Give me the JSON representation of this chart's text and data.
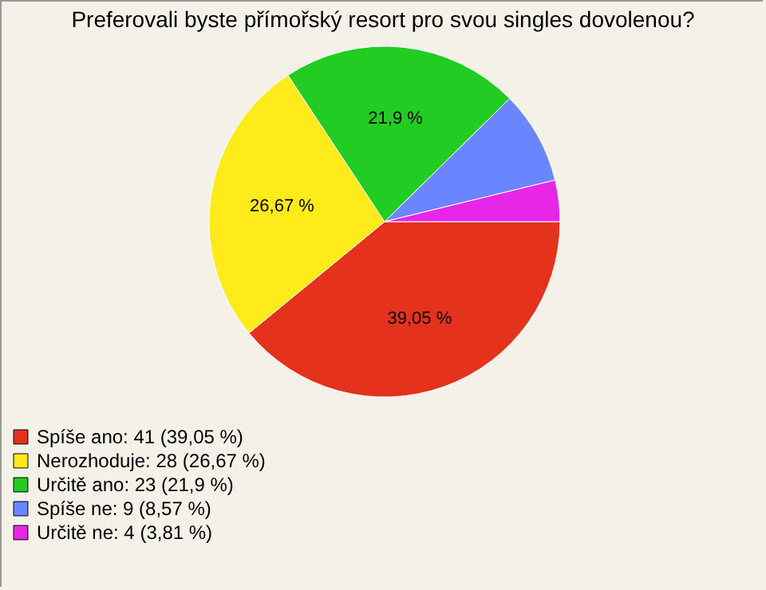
{
  "chart_data": {
    "type": "pie",
    "title": "Preferovali byste přímořský resort pro svou singles dovolenou?",
    "categories": [
      "Spíše ano: 41 (39,05 %)",
      "Nerozhoduje: 28 (26,67 %)",
      "Určitě ano: 23 (21,9 %)",
      "Spíše ne: 9 (8,57 %)",
      "Určitě ne: 4 (3,81 %)"
    ],
    "values": [
      39.05,
      26.67,
      21.9,
      8.57,
      3.81
    ],
    "value_labels": [
      "39,05 %",
      "26,67 %",
      "21,9 %",
      null,
      null
    ],
    "colors": [
      "#e4321c",
      "#ffea1a",
      "#22cc22",
      "#6a86ff",
      "#e826e8"
    ],
    "legend": "bottom left"
  }
}
